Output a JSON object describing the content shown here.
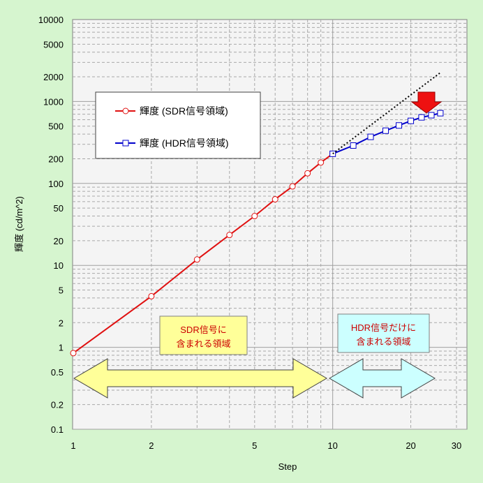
{
  "chart_data": {
    "type": "line",
    "xlabel": "Step",
    "ylabel": "輝度 (cd/m^2)",
    "x_scale": "log",
    "y_scale": "log",
    "xlim": [
      1,
      30
    ],
    "ylim": [
      0.1,
      10000
    ],
    "x_ticks": [
      "1",
      "2",
      "5",
      "10",
      "20",
      "30"
    ],
    "y_ticks": [
      "0.1",
      "0.2",
      "0.5",
      "1",
      "2",
      "5",
      "10",
      "20",
      "50",
      "100",
      "200",
      "500",
      "1000",
      "2000",
      "5000",
      "10000"
    ],
    "grid": true,
    "legend_position": "upper-left",
    "series": [
      {
        "name": "輝度 (SDR信号領域)",
        "color": "#e01010",
        "marker": "circle",
        "x": [
          1,
          2,
          3,
          4,
          5,
          6,
          7,
          8,
          9,
          10
        ],
        "y": [
          0.85,
          4.2,
          11.8,
          23.5,
          40,
          64,
          92,
          133,
          180,
          230
        ]
      },
      {
        "name": "輝度 (HDR信号領域)",
        "color": "#0000cc",
        "marker": "square",
        "x": [
          10,
          12,
          14,
          16,
          18,
          20,
          22,
          24,
          26
        ],
        "y": [
          230,
          290,
          370,
          440,
          510,
          580,
          640,
          680,
          720
        ]
      },
      {
        "color": "#000000",
        "style": "dotted",
        "x": [
          10,
          26
        ],
        "y": [
          230,
          2250
        ]
      }
    ],
    "annotations": [
      {
        "line1": "SDR信号に",
        "line2": "含まれる領域",
        "range": [
          1,
          10
        ]
      },
      {
        "line1": "HDR信号だけに",
        "line2": "含まれる領域",
        "range": [
          10,
          26
        ]
      }
    ]
  }
}
